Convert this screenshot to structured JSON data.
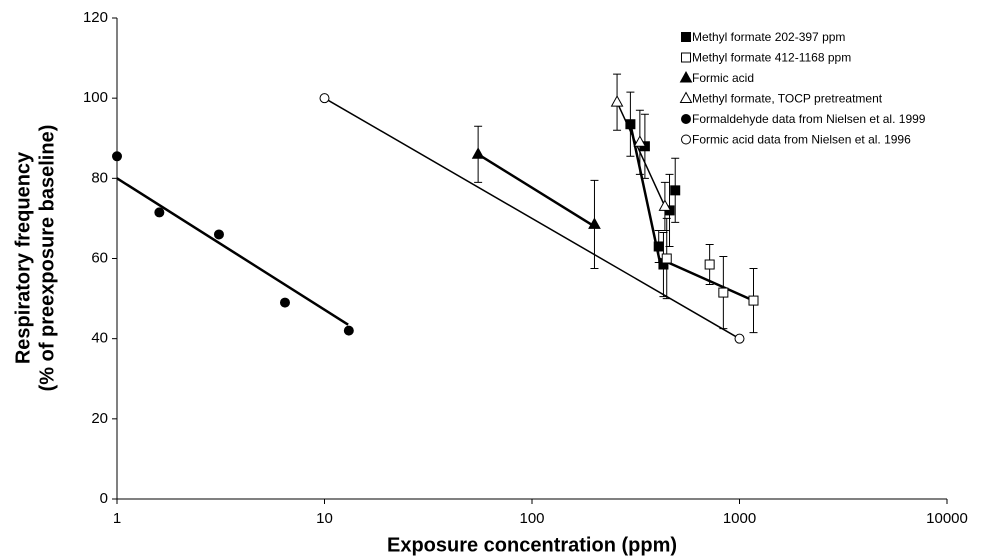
{
  "chart_data": {
    "type": "scatter",
    "xlabel": "Exposure concentration (ppm)",
    "ylabel": [
      "Respiratory frequency",
      "(% of preexposure baseline)"
    ],
    "xscale": "log",
    "xlim": [
      1,
      10000
    ],
    "xticks": [
      1,
      10,
      100,
      1000,
      10000
    ],
    "ylim": [
      0,
      120
    ],
    "yticks": [
      0,
      20,
      40,
      60,
      80,
      100,
      120
    ],
    "grid": false,
    "legend": "upper right",
    "series": [
      {
        "name": "Methyl formate 202-397 ppm",
        "marker": "square",
        "filled": true,
        "color": "#000000",
        "x": [
          298,
          350,
          408,
          430,
          460,
          490
        ],
        "values": [
          93.5,
          88,
          63,
          58.5,
          72,
          77
        ],
        "errors": [
          8,
          8,
          4,
          8,
          9,
          8
        ]
      },
      {
        "name": "Methyl formate 412-1168 ppm",
        "marker": "square",
        "filled": false,
        "color": "#000000",
        "x": [
          446,
          718,
          836,
          1168
        ],
        "values": [
          60,
          58.5,
          51.5,
          49.5
        ],
        "errors": [
          10,
          5,
          9,
          8
        ]
      },
      {
        "name": "Formic acid",
        "marker": "triangle",
        "filled": true,
        "color": "#000000",
        "x": [
          55,
          200
        ],
        "values": [
          86,
          68.5
        ],
        "errors": [
          7,
          11
        ]
      },
      {
        "name": "Methyl formate, TOCP pretreatment",
        "marker": "triangle",
        "filled": false,
        "color": "#000000",
        "x": [
          257,
          331,
          437
        ],
        "values": [
          99,
          89,
          73
        ],
        "errors": [
          7,
          8,
          6
        ]
      },
      {
        "name": "Formaldehyde data from Nielsen et al. 1999",
        "marker": "circle",
        "filled": true,
        "color": "#000000",
        "x": [
          1,
          1.6,
          3.1,
          6.45,
          13.1
        ],
        "values": [
          85.5,
          71.5,
          66,
          49,
          42
        ]
      },
      {
        "name": "Formic acid data from Nielsen et al. 1996",
        "marker": "circle",
        "filled": false,
        "color": "#000000",
        "x": [
          10,
          1000
        ],
        "values": [
          100,
          40
        ]
      }
    ],
    "lines": [
      {
        "x": [
          1,
          13
        ],
        "values": [
          80,
          43.5
        ],
        "width": 2.5
      },
      {
        "x": [
          10,
          1000
        ],
        "values": [
          100,
          40
        ],
        "width": 1.5
      },
      {
        "x": [
          55,
          200
        ],
        "values": [
          86,
          68
        ],
        "width": 2.5
      },
      {
        "x": [
          257,
          437
        ],
        "values": [
          99,
          73
        ],
        "width": 1.5
      },
      {
        "x": [
          298,
          410,
          1168
        ],
        "values": [
          93.5,
          60,
          49.5
        ],
        "width": 2.5
      }
    ]
  }
}
